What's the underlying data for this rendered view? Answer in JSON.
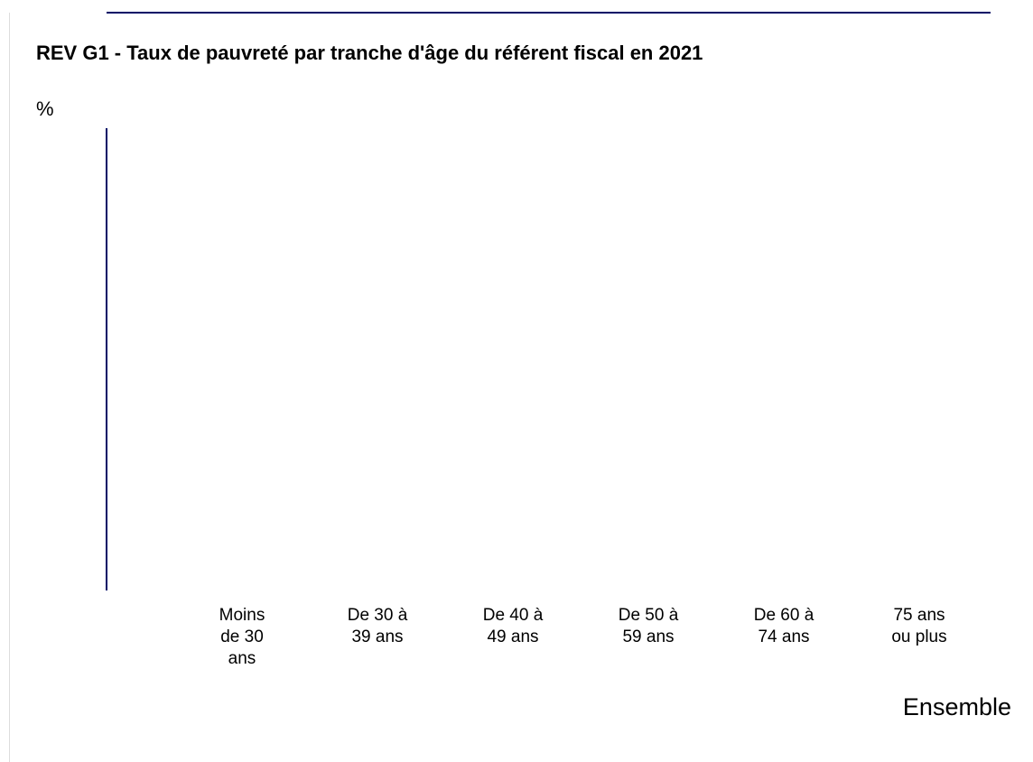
{
  "chart_data": {
    "type": "bar",
    "title": "REV G1 - Taux de pauvreté par tranche d'âge du référent fiscal en 2021",
    "y_label": "%",
    "categories": [
      "Moins de 30 ans",
      "De 30 à 39 ans",
      "De 40 à 49 ans",
      "De 50 à 59 ans",
      "De 60 à 74 ans",
      "75 ans ou plus"
    ],
    "series": [
      {
        "name": "Ensemble",
        "values": [
          null,
          null,
          null,
          null,
          null,
          null
        ]
      }
    ]
  }
}
